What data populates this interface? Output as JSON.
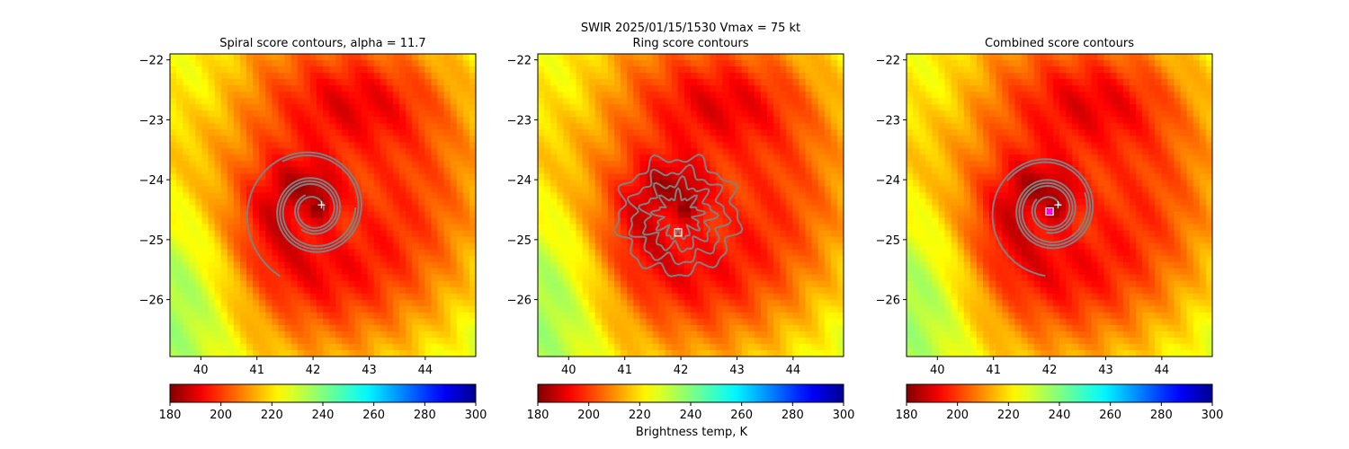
{
  "figure": {
    "suptitle": "SWIR  2025/01/15/1530    Vmax = 75 kt",
    "colorbar_label": "Brightness temp, K"
  },
  "colors": {
    "contour": "#808080",
    "marker": "#ffffff",
    "center_dot": "#ff00ff"
  },
  "chart_data": [
    {
      "type": "heatmap",
      "title": "Spiral score contours, alpha = 11.7",
      "xlabel": "",
      "ylabel": "",
      "xlim": [
        39.45,
        44.9
      ],
      "ylim": [
        -26.95,
        -21.9
      ],
      "xticks": [
        40,
        41,
        42,
        43,
        44
      ],
      "yticks": [
        -22,
        -23,
        -24,
        -25,
        -26
      ],
      "colorbar": {
        "cmap": "jet_r",
        "range": [
          180,
          300
        ],
        "ticks": [
          180,
          200,
          220,
          240,
          260,
          280,
          300
        ]
      },
      "markers": [
        {
          "kind": "plus",
          "x": 42.15,
          "y": -24.42
        }
      ],
      "contour_style": "spiral"
    },
    {
      "type": "heatmap",
      "title": "Ring score contours",
      "xlabel": "",
      "ylabel": "",
      "xlim": [
        39.45,
        44.9
      ],
      "ylim": [
        -26.95,
        -21.9
      ],
      "xticks": [
        40,
        41,
        42,
        43,
        44
      ],
      "yticks": [
        -22,
        -23,
        -24,
        -25,
        -26
      ],
      "colorbar": {
        "cmap": "jet_r",
        "range": [
          180,
          300
        ],
        "ticks": [
          180,
          200,
          220,
          240,
          260,
          280,
          300
        ]
      },
      "markers": [
        {
          "kind": "square",
          "x": 41.95,
          "y": -24.88
        }
      ],
      "contour_style": "ring"
    },
    {
      "type": "heatmap",
      "title": "Combined score contours",
      "xlabel": "",
      "ylabel": "",
      "xlim": [
        39.45,
        44.9
      ],
      "ylim": [
        -26.95,
        -21.9
      ],
      "xticks": [
        40,
        41,
        42,
        43,
        44
      ],
      "yticks": [
        -22,
        -23,
        -24,
        -25,
        -26
      ],
      "colorbar": {
        "cmap": "jet_r",
        "range": [
          180,
          300
        ],
        "ticks": [
          180,
          200,
          220,
          240,
          260,
          280,
          300
        ]
      },
      "markers": [
        {
          "kind": "plus",
          "x": 42.15,
          "y": -24.42
        },
        {
          "kind": "dot",
          "x": 42.0,
          "y": -24.53
        },
        {
          "kind": "square",
          "x": 42.0,
          "y": -24.53
        }
      ],
      "contour_style": "combined"
    }
  ]
}
